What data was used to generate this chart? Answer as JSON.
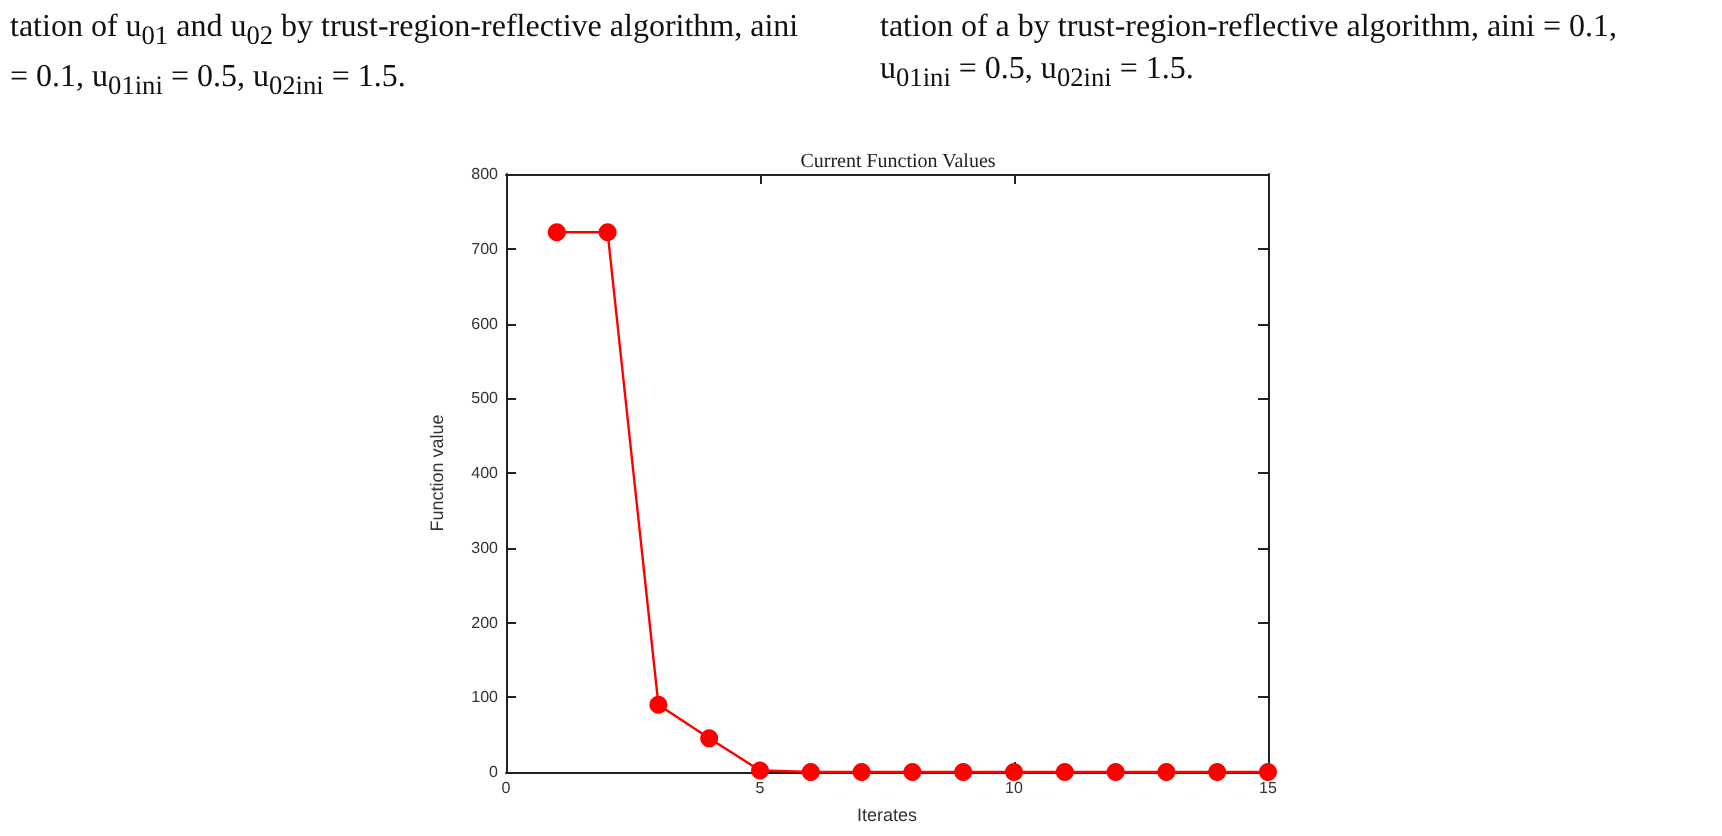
{
  "chart_data": {
    "type": "line",
    "title": "Current Function Values",
    "xlabel": "Iterates",
    "ylabel": "Function value",
    "annotations": [
      "tation of u$_{01}$ and u$_{02}$ by trust-region-reflective algorithm, aini = 0.1, u$_{01ini}$ = 0.5, u$_{02ini}$ = 1.5.",
      "tation of a by trust-region-reflective algorithm, aini = 0.1, u$_{01ini}$ = 0.5, u$_{02ini}$ = 1.5."
    ],
    "x": [
      1,
      2,
      3,
      4,
      5,
      6,
      7,
      8,
      9,
      10,
      11,
      12,
      13,
      14,
      15
    ],
    "series": [
      {
        "color": "#ff0000",
        "values": [
          722,
          722,
          90,
          45,
          2,
          0,
          0,
          0,
          0,
          0,
          0,
          0,
          0,
          0,
          0
        ]
      }
    ],
    "xlim": [
      0,
      15
    ],
    "xticks": [
      0,
      5,
      10,
      15
    ],
    "ylim": [
      0,
      800
    ],
    "yticks": [
      0,
      100,
      200,
      300,
      400,
      500,
      600,
      700,
      800
    ],
    "grid": false,
    "marker": "circle",
    "line_style": "solid"
  }
}
